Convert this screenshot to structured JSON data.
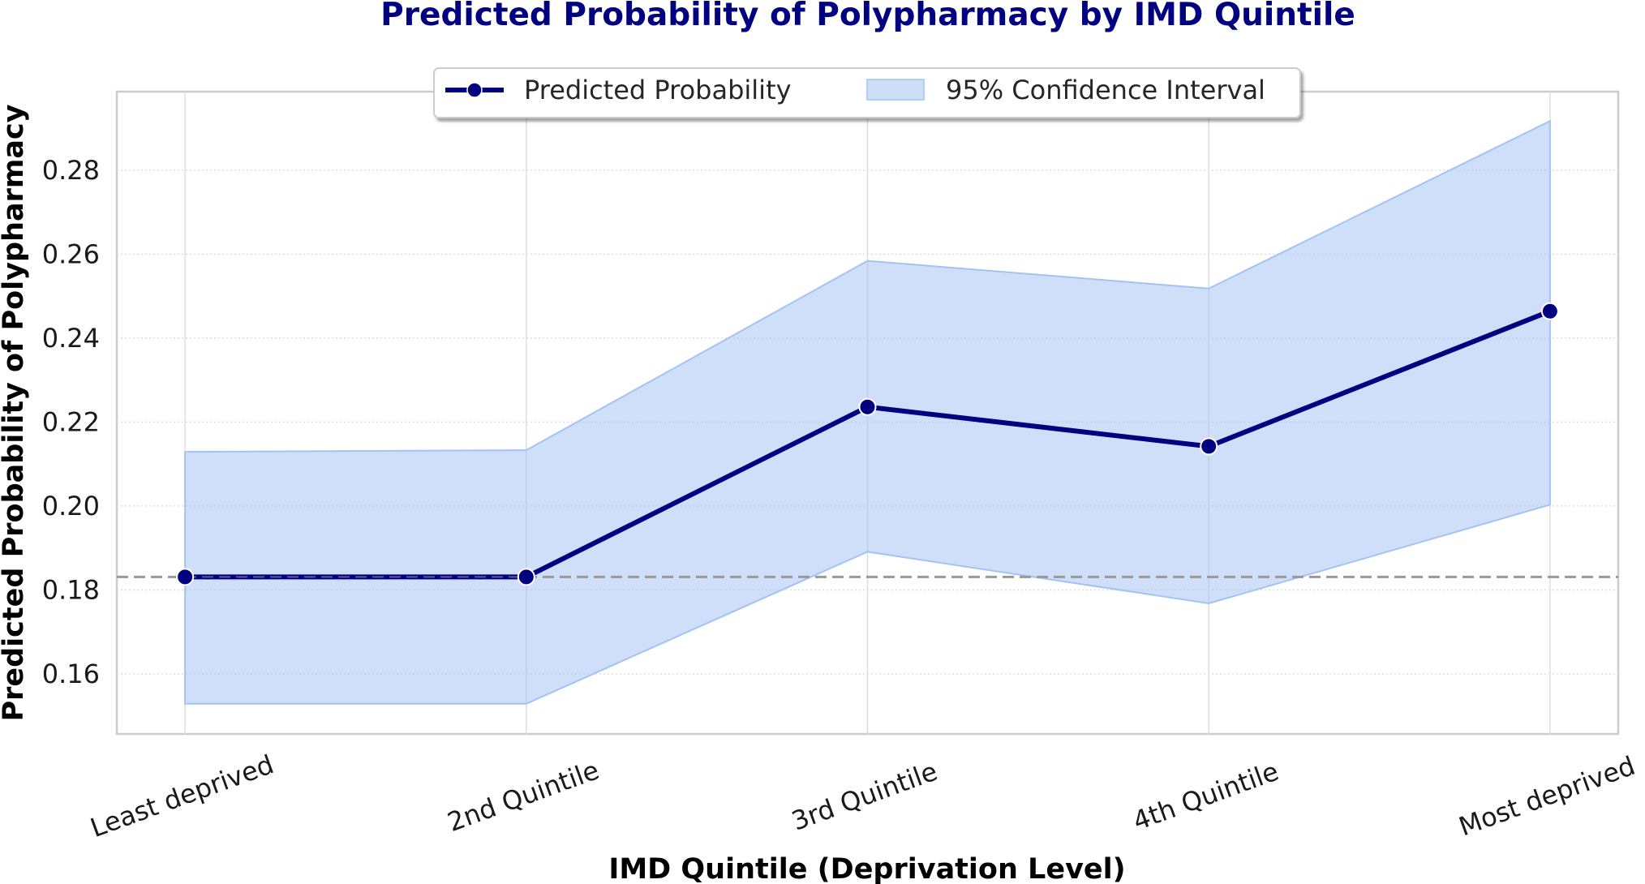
{
  "chart_data": {
    "type": "line",
    "title": "Predicted Probability of Polypharmacy by IMD Quintile",
    "xlabel": "IMD Quintile (Deprivation Level)",
    "ylabel": "Predicted Probability of Polypharmacy",
    "categories": [
      "Least deprived",
      "2nd Quintile",
      "3rd Quintile",
      "4th Quintile",
      "Most deprived"
    ],
    "series": [
      {
        "name": "Predicted Probability",
        "values": [
          0.1831,
          0.1831,
          0.2236,
          0.2142,
          0.2464
        ],
        "color": "#000080",
        "marker": "circle"
      }
    ],
    "confidence_interval": {
      "name": "95% Confidence Interval",
      "lower": [
        0.1529,
        0.1529,
        0.1891,
        0.1768,
        0.2003
      ],
      "upper": [
        0.2129,
        0.2133,
        0.2584,
        0.2518,
        0.2917
      ],
      "color": "#a4c2f4"
    },
    "reference_line": {
      "y": 0.1831,
      "style": "dashed",
      "color": "#999999"
    },
    "yticks": [
      0.16,
      0.18,
      0.2,
      0.22,
      0.24,
      0.26,
      0.28
    ],
    "ytick_labels": [
      "0.16",
      "0.18",
      "0.20",
      "0.22",
      "0.24",
      "0.26",
      "0.28"
    ],
    "ylim": [
      0.1457,
      0.2987
    ],
    "xlim": [
      -0.2,
      4.2
    ],
    "grid": true,
    "legend": {
      "placement": "top-center",
      "entries": [
        "Predicted Probability",
        "95% Confidence Interval"
      ]
    }
  }
}
